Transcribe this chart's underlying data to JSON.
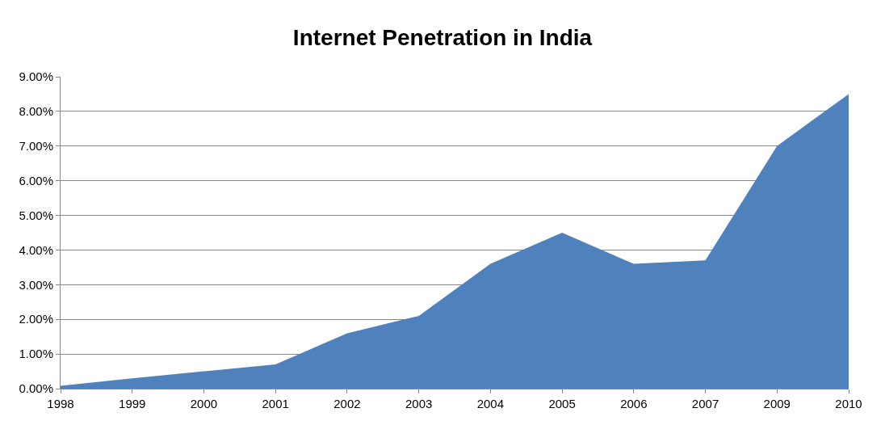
{
  "chart_data": {
    "type": "area",
    "title": "Internet Penetration in India",
    "categories": [
      "1998",
      "1999",
      "2000",
      "2001",
      "2002",
      "2003",
      "2004",
      "2005",
      "2006",
      "2007",
      "2009",
      "2010"
    ],
    "series": [
      {
        "color": "#4f81bd",
        "values": [
          0.08,
          0.3,
          0.5,
          0.7,
          1.6,
          2.1,
          3.6,
          4.5,
          3.6,
          3.7,
          7.0,
          8.5
        ]
      }
    ],
    "ylim": [
      0,
      9
    ],
    "yticks": [
      {
        "value": 0,
        "label": "0.00%"
      },
      {
        "value": 1,
        "label": "1.00%"
      },
      {
        "value": 2,
        "label": "2.00%"
      },
      {
        "value": 3,
        "label": "3.00%"
      },
      {
        "value": 4,
        "label": "4.00%"
      },
      {
        "value": 5,
        "label": "5.00%"
      },
      {
        "value": 6,
        "label": "6.00%"
      },
      {
        "value": 7,
        "label": "7.00%"
      },
      {
        "value": 8,
        "label": "8.00%"
      },
      {
        "value": 9,
        "label": "9.00%"
      }
    ],
    "grid": "y"
  }
}
